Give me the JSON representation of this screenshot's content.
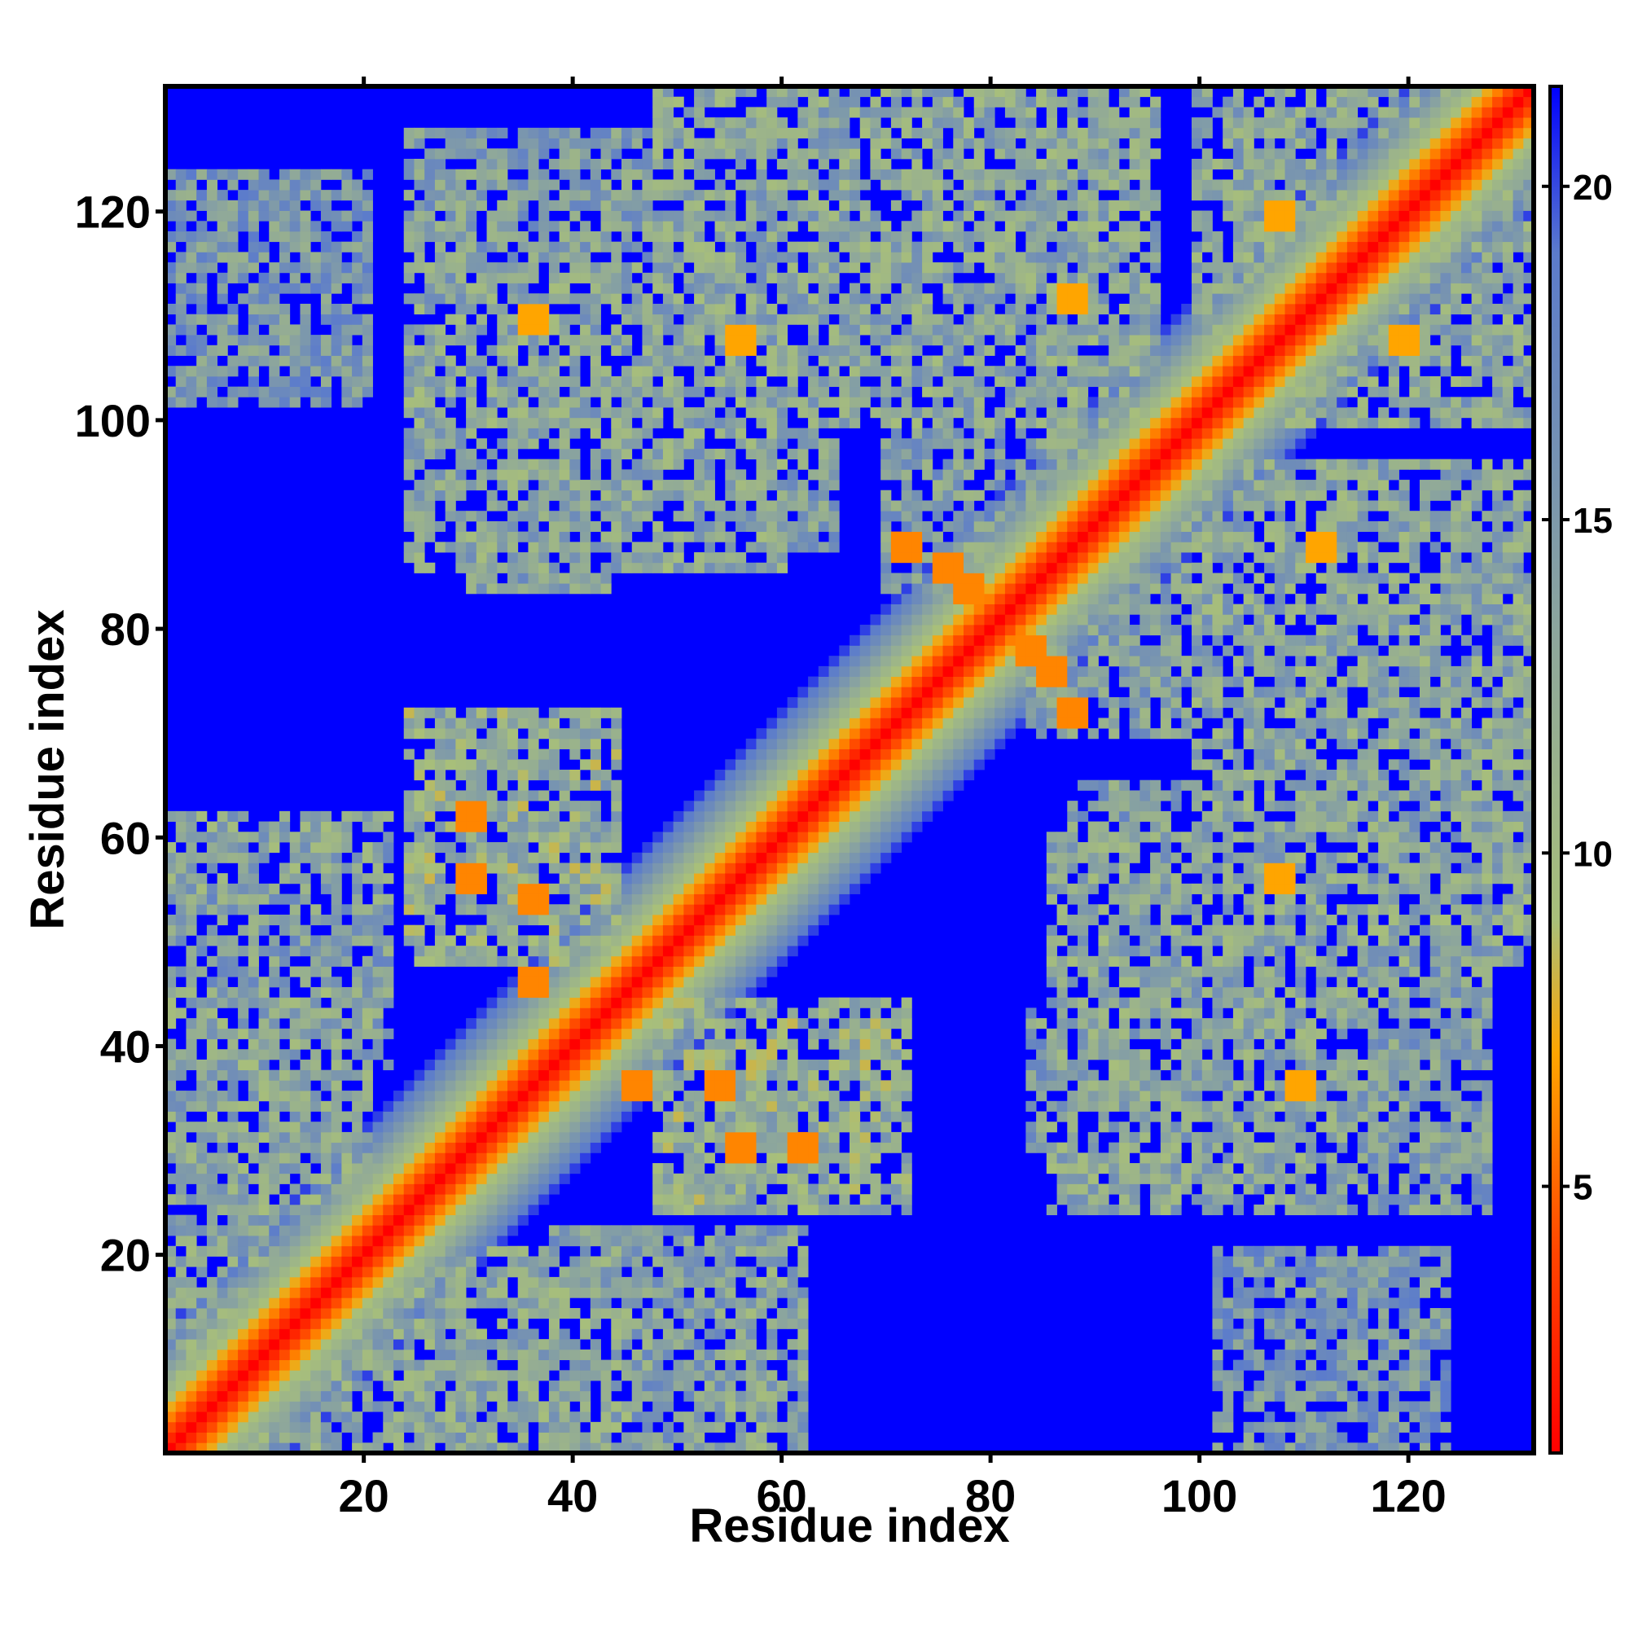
{
  "chart_data": {
    "type": "heatmap",
    "title": "",
    "xlabel": "Residue index",
    "ylabel": "Residue index",
    "n_residues": 132,
    "xlim": [
      1,
      132
    ],
    "ylim": [
      1,
      132
    ],
    "x_ticks": [
      20,
      40,
      60,
      80,
      100,
      120
    ],
    "y_ticks": [
      20,
      40,
      60,
      80,
      100,
      120
    ],
    "colorbar": {
      "range": [
        1,
        21.5
      ],
      "ticks": [
        5,
        10,
        15,
        20
      ],
      "stops": [
        {
          "value": 1,
          "color": "#ff0000"
        },
        {
          "value": 4,
          "color": "#ff4500"
        },
        {
          "value": 7,
          "color": "#ffa500"
        },
        {
          "value": 9,
          "color": "#a8bf7a"
        },
        {
          "value": 13,
          "color": "#8fa89a"
        },
        {
          "value": 19,
          "color": "#5b7bcc"
        },
        {
          "value": 21.5,
          "color": "#0000ff"
        }
      ]
    },
    "cutoff_value": 21.5,
    "background_color": "#0000ff",
    "diagonal": {
      "value_at_zero": 1.0,
      "slope_per_residue": 1.6,
      "description_width_residues": 14
    },
    "contact_regions": [
      {
        "x": [
          1,
          20
        ],
        "y": [
          1,
          45
        ],
        "value": 12
      },
      {
        "x": [
          1,
          20
        ],
        "y": [
          55,
          62
        ],
        "value": 12
      },
      {
        "x": [
          1,
          20
        ],
        "y": [
          108,
          124
        ],
        "value": 14
      },
      {
        "x": [
          25,
          42
        ],
        "y": [
          48,
          68
        ],
        "value": 11
      },
      {
        "x": [
          30,
          43
        ],
        "y": [
          84,
          110
        ],
        "value": 13
      },
      {
        "x": [
          33,
          65
        ],
        "y": [
          88,
          116
        ],
        "value": 13
      },
      {
        "x": [
          38,
          62
        ],
        "y": [
          1,
          22
        ],
        "value": 13
      },
      {
        "x": [
          48,
          72
        ],
        "y": [
          24,
          44
        ],
        "value": 11
      },
      {
        "x": [
          70,
          95
        ],
        "y": [
          84,
          132
        ],
        "value": 13
      },
      {
        "x": [
          86,
          115
        ],
        "y": [
          24,
          60
        ],
        "value": 12
      },
      {
        "x": [
          100,
          128
        ],
        "y": [
          24,
          48
        ],
        "value": 13
      },
      {
        "x": [
          102,
          117
        ],
        "y": [
          1,
          20
        ],
        "value": 14
      },
      {
        "x": [
          100,
          132
        ],
        "y": [
          48,
          96
        ],
        "value": 12
      },
      {
        "x": [
          100,
          132
        ],
        "y": [
          108,
          132
        ],
        "value": 12
      }
    ],
    "strong_contacts": [
      {
        "x": 72,
        "y": 88,
        "value": 6
      },
      {
        "x": 76,
        "y": 86,
        "value": 6
      },
      {
        "x": 84,
        "y": 78,
        "value": 6
      },
      {
        "x": 88,
        "y": 72,
        "value": 6
      },
      {
        "x": 30,
        "y": 62,
        "value": 6
      },
      {
        "x": 36,
        "y": 54,
        "value": 6
      },
      {
        "x": 46,
        "y": 36,
        "value": 6
      },
      {
        "x": 56,
        "y": 30,
        "value": 6
      },
      {
        "x": 112,
        "y": 88,
        "value": 7
      },
      {
        "x": 108,
        "y": 56,
        "value": 7
      },
      {
        "x": 110,
        "y": 36,
        "value": 7
      },
      {
        "x": 120,
        "y": 108,
        "value": 7
      }
    ],
    "grid": false,
    "legend": "none"
  }
}
